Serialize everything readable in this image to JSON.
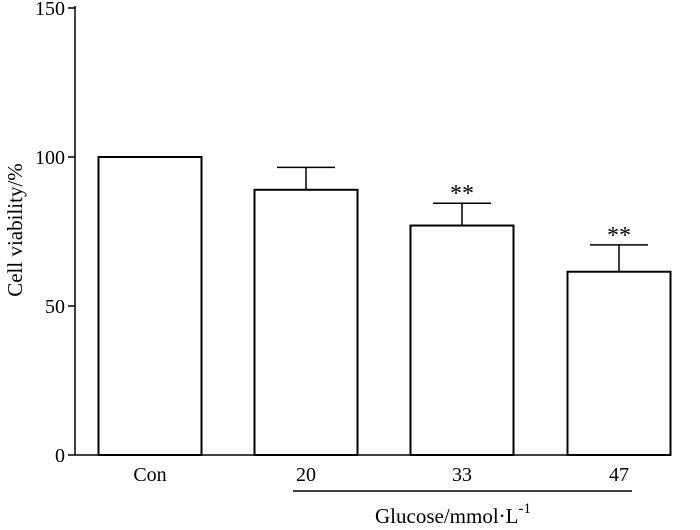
{
  "chart_data": {
    "type": "bar",
    "categories": [
      "Con",
      "20",
      "33",
      "47"
    ],
    "values": [
      100,
      89,
      77,
      61.5
    ],
    "error": [
      0,
      7.5,
      7.5,
      9
    ],
    "significance": [
      "",
      "",
      "**",
      "**"
    ],
    "ylabel": "Cell viability/%",
    "xlabel": "Glucose/mmol·L",
    "xlabel_superscript": "-1",
    "ylim": [
      0,
      150
    ],
    "yticks": [
      0,
      50,
      100,
      150
    ],
    "grid": false,
    "colors": {
      "bar_fill": "#ffffff",
      "stroke": "#000000"
    }
  }
}
